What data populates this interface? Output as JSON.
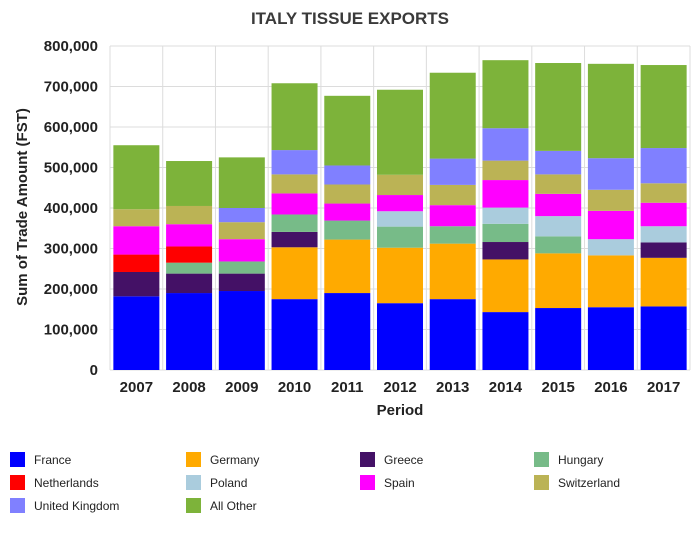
{
  "chart_data": {
    "type": "bar",
    "stacked": true,
    "title": "ITALY TISSUE EXPORTS",
    "xlabel": "Period",
    "ylabel": "Sum of Trade Amount (FST)",
    "ylim": [
      0,
      800000
    ],
    "yticks": [
      0,
      100000,
      200000,
      300000,
      400000,
      500000,
      600000,
      700000,
      800000
    ],
    "ytick_labels": [
      "0",
      "100,000",
      "200,000",
      "300,000",
      "400,000",
      "500,000",
      "600,000",
      "700,000",
      "800,000"
    ],
    "grid": true,
    "legend_position": "bottom",
    "categories": [
      "2007",
      "2008",
      "2009",
      "2010",
      "2011",
      "2012",
      "2013",
      "2014",
      "2015",
      "2016",
      "2017"
    ],
    "series": [
      {
        "name": "France",
        "color": "#0000ff",
        "values": [
          182000,
          190000,
          195000,
          175000,
          190000,
          165000,
          175000,
          143000,
          153000,
          155000,
          157000
        ]
      },
      {
        "name": "Germany",
        "color": "#ffaa00",
        "values": [
          0,
          0,
          0,
          128000,
          132000,
          137000,
          137000,
          130000,
          135000,
          128000,
          120000
        ]
      },
      {
        "name": "Greece",
        "color": "#441166",
        "values": [
          60000,
          48000,
          43000,
          38000,
          0,
          0,
          0,
          43000,
          0,
          0,
          38000
        ]
      },
      {
        "name": "Hungary",
        "color": "#77bb88",
        "values": [
          0,
          27000,
          30000,
          43000,
          47000,
          52000,
          43000,
          45000,
          42000,
          0,
          0
        ]
      },
      {
        "name": "Netherlands",
        "color": "#ff0000",
        "values": [
          43000,
          40000,
          0,
          0,
          0,
          0,
          0,
          0,
          0,
          0,
          0
        ]
      },
      {
        "name": "Poland",
        "color": "#aaccdd",
        "values": [
          0,
          0,
          0,
          0,
          0,
          38000,
          0,
          40000,
          50000,
          40000,
          40000
        ]
      },
      {
        "name": "Spain",
        "color": "#ff00ff",
        "values": [
          70000,
          55000,
          55000,
          52000,
          42000,
          40000,
          52000,
          68000,
          55000,
          70000,
          58000
        ]
      },
      {
        "name": "Switzerland",
        "color": "#bbb355",
        "values": [
          42000,
          45000,
          42000,
          47000,
          47000,
          50000,
          50000,
          48000,
          48000,
          52000,
          48000
        ]
      },
      {
        "name": "United Kingdom",
        "color": "#8080ff",
        "values": [
          0,
          0,
          35000,
          60000,
          47000,
          0,
          65000,
          80000,
          58000,
          78000,
          87000
        ]
      },
      {
        "name": "All Other",
        "color": "#7db33a",
        "values": [
          158000,
          111000,
          125000,
          165000,
          172000,
          210000,
          212000,
          168000,
          217000,
          233000,
          205000
        ]
      }
    ]
  }
}
